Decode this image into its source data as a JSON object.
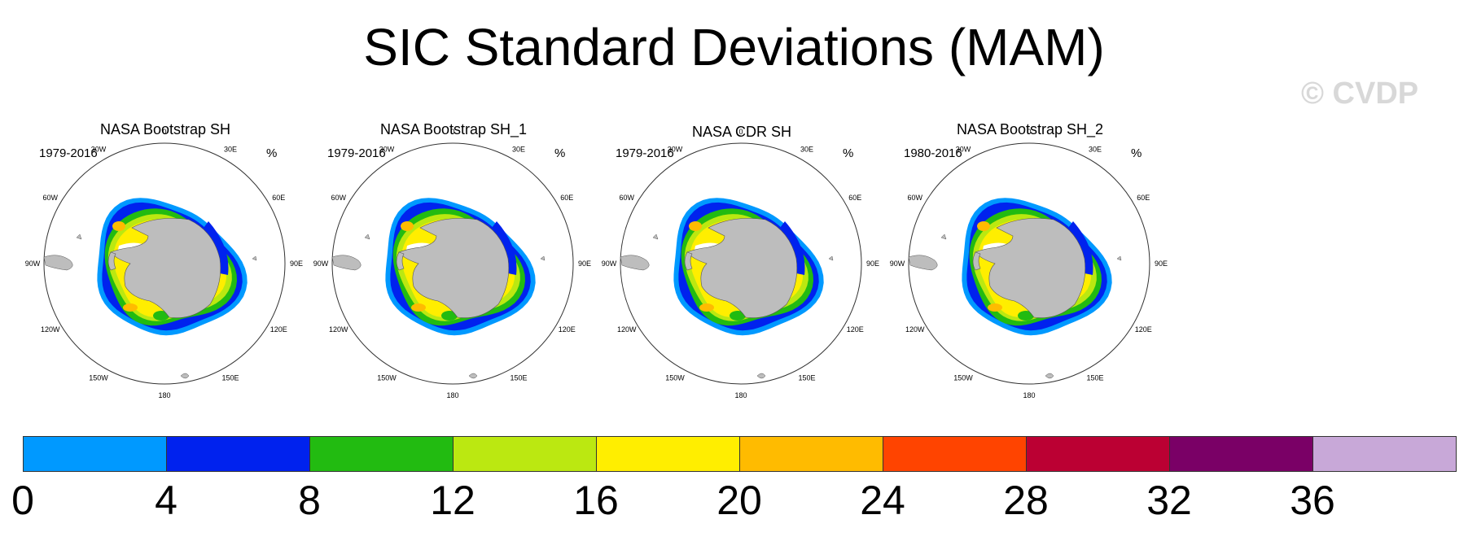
{
  "title": "SIC Standard Deviations (MAM)",
  "copyright": "© CVDP",
  "chart_data": {
    "type": "heatmap",
    "title": "SIC Standard Deviations (MAM)",
    "projection": "south polar stereographic",
    "units": "%",
    "panels": [
      {
        "name": "NASA Bootstrap SH",
        "period": "1979-2016"
      },
      {
        "name": "NASA Bootstrap SH_1",
        "period": "1979-2016"
      },
      {
        "name": "NASA CDR SH",
        "period": "1979-2016"
      },
      {
        "name": "NASA Bootstrap SH_2",
        "period": "1980-2016"
      }
    ],
    "longitude_labels": [
      "0",
      "30E",
      "60E",
      "90E",
      "120E",
      "150E",
      "180",
      "150W",
      "120W",
      "90W",
      "60W",
      "30W"
    ],
    "colorbar": {
      "levels": [
        0,
        4,
        8,
        12,
        16,
        20,
        24,
        28,
        32,
        36
      ],
      "tick_labels": [
        "0",
        "4",
        "8",
        "12",
        "16",
        "20",
        "24",
        "28",
        "32",
        "36"
      ],
      "colors": [
        "#0099ff",
        "#0022ee",
        "#22bb11",
        "#bbe811",
        "#ffee00",
        "#ffbb00",
        "#ff4400",
        "#bb0033",
        "#7a0066",
        "#c8a8d8"
      ]
    },
    "colors": {
      "land": "#bdbdbd",
      "ocean": "#ffffff",
      "lowest": "#0099ff",
      "low": "#0022ee",
      "mid": "#22bb11",
      "midhigh": "#bbe811",
      "high": "#ffee00",
      "higher": "#ffbb00"
    }
  }
}
